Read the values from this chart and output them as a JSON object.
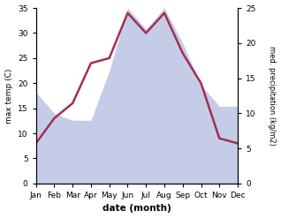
{
  "months": [
    "Jan",
    "Feb",
    "Mar",
    "Apr",
    "May",
    "Jun",
    "Jul",
    "Aug",
    "Sep",
    "Oct",
    "Nov",
    "Dec"
  ],
  "temperature": [
    8,
    13,
    16,
    24,
    25,
    34,
    30,
    34,
    26,
    20,
    9,
    8
  ],
  "precipitation": [
    13,
    10,
    9,
    9,
    16,
    25,
    22,
    25,
    20,
    14,
    11,
    11
  ],
  "temp_color": "#a03050",
  "precip_fill_color": "#c5cce8",
  "temp_ylim": [
    0,
    35
  ],
  "precip_ylim": [
    0,
    25
  ],
  "temp_yticks": [
    0,
    5,
    10,
    15,
    20,
    25,
    30,
    35
  ],
  "precip_yticks": [
    0,
    5,
    10,
    15,
    20,
    25
  ],
  "xlabel": "date (month)",
  "ylabel_left": "max temp (C)",
  "ylabel_right": "med. precipitation (kg/m2)",
  "figsize": [
    3.18,
    2.47
  ],
  "dpi": 100
}
